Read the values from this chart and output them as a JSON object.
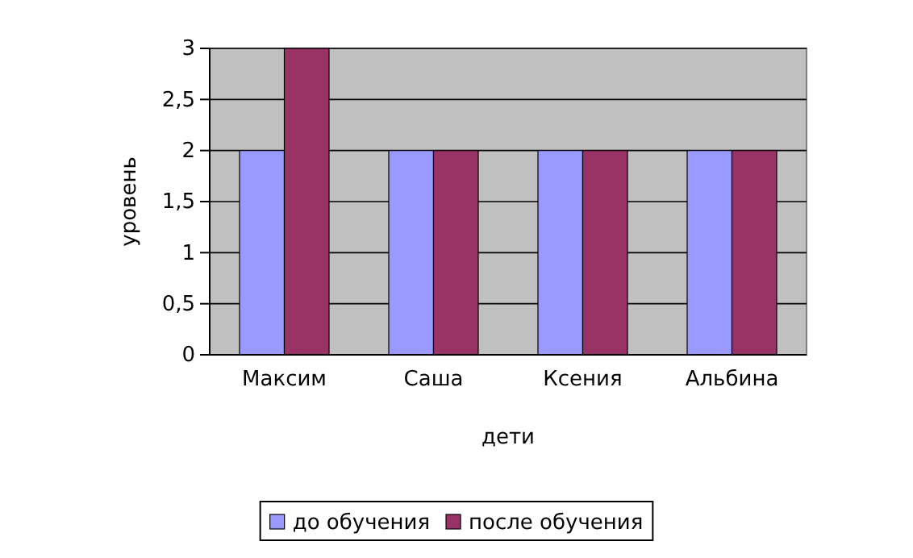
{
  "chart_data": {
    "type": "bar",
    "xlabel": "дети",
    "ylabel": "уровень",
    "categories": [
      "Максим",
      "Саша",
      "Ксения",
      "Альбина"
    ],
    "series": [
      {
        "name": "до обучения",
        "color": "#9999ff",
        "values": [
          2,
          2,
          2,
          2
        ]
      },
      {
        "name": "после обучения",
        "color": "#993366",
        "values": [
          3,
          2,
          2,
          2
        ]
      }
    ],
    "ylim": [
      0,
      3
    ],
    "yticks": [
      0,
      {
        "value": 0.5,
        "label": "0,5"
      },
      1,
      {
        "value": 1.5,
        "label": "1,5"
      },
      2,
      {
        "value": 2.5,
        "label": "2,5"
      },
      3
    ],
    "grid": "y",
    "legend": "bottom"
  }
}
